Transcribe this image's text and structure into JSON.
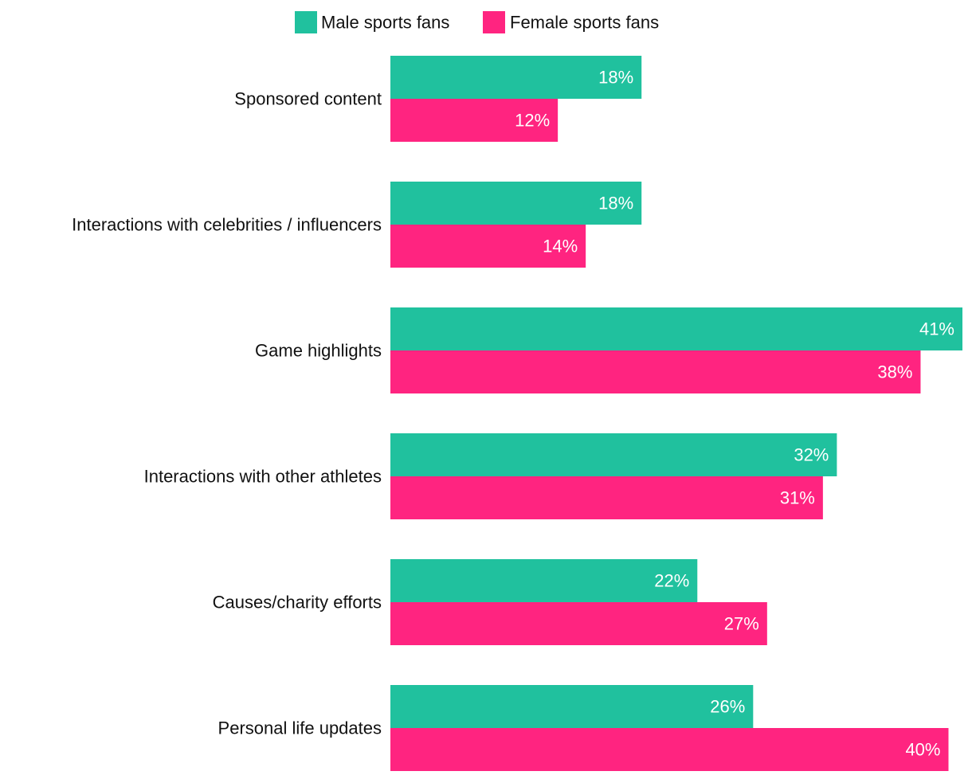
{
  "chart_data": {
    "type": "bar",
    "orientation": "horizontal",
    "title": "",
    "xlabel": "",
    "ylabel": "",
    "xlim": [
      0,
      41
    ],
    "grid": false,
    "legend_position": "top-center",
    "value_suffix": "%",
    "categories": [
      "Sponsored content",
      "Interactions with celebrities / influencers",
      "Game highlights",
      "Interactions with other athletes",
      "Causes/charity efforts",
      "Personal life updates"
    ],
    "series": [
      {
        "name": "Male sports fans",
        "color": "#20c19e",
        "values": [
          18,
          18,
          41,
          32,
          22,
          26
        ]
      },
      {
        "name": "Female sports fans",
        "color": "#ff2480",
        "values": [
          12,
          14,
          38,
          31,
          27,
          40
        ]
      }
    ]
  }
}
